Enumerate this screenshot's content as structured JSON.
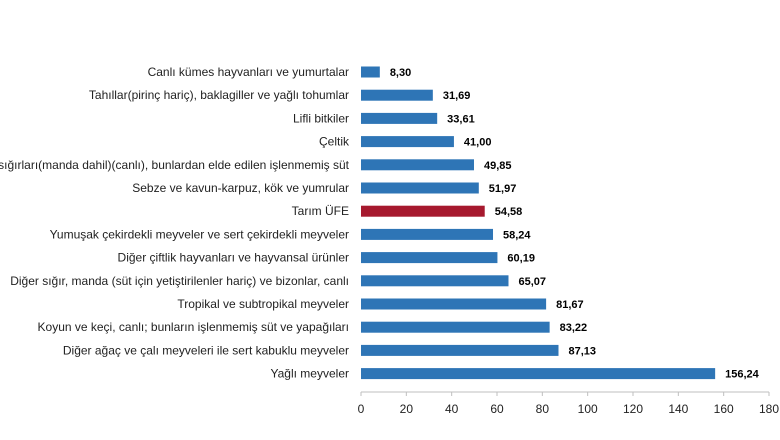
{
  "chart_data": {
    "type": "bar",
    "orientation": "horizontal",
    "categories": [
      "Canlı kümes hayvanları ve yumurtalar",
      "Tahıllar(pirinç hariç), baklagiller ve yağlı tohumlar",
      "Lifli bitkiler",
      "Çeltik",
      "Süt sığırları(manda dahil)(canlı), bunlardan elde edilen işlenmemiş süt",
      "Sebze ve kavun-karpuz, kök ve yumrular",
      "Tarım ÜFE",
      "Yumuşak çekirdekli meyveler ve sert çekirdekli meyveler",
      "Diğer çiftlik hayvanları ve hayvansal ürünler",
      "Diğer sığır, manda (süt için yetiştirilenler hariç) ve bizonlar, canlı",
      "Tropikal ve subtropikal meyveler",
      "Koyun ve keçi, canlı; bunların işlenmemiş süt ve yapağıları",
      "Diğer ağaç ve çalı meyveleri ile sert kabuklu meyveler",
      "Yağlı meyveler"
    ],
    "values": [
      8.3,
      31.69,
      33.61,
      41.0,
      49.85,
      51.97,
      54.58,
      58.24,
      60.19,
      65.07,
      81.67,
      83.22,
      87.13,
      156.24
    ],
    "value_labels": [
      "8,30",
      "31,69",
      "33,61",
      "41,00",
      "49,85",
      "51,97",
      "54,58",
      "58,24",
      "60,19",
      "65,07",
      "81,67",
      "83,22",
      "87,13",
      "156,24"
    ],
    "highlight_category": "Tarım ÜFE",
    "xlim": [
      0,
      180
    ],
    "xticks": [
      0,
      20,
      40,
      60,
      80,
      100,
      120,
      140,
      160,
      180
    ],
    "xtick_labels": [
      "0",
      "20",
      "40",
      "60",
      "80",
      "100",
      "120",
      "140",
      "160",
      "180"
    ],
    "grid": false,
    "legend": "none",
    "colors": {
      "bar": "#2e75b6",
      "highlight": "#a6192e",
      "axis": "#bfbfbf"
    }
  }
}
